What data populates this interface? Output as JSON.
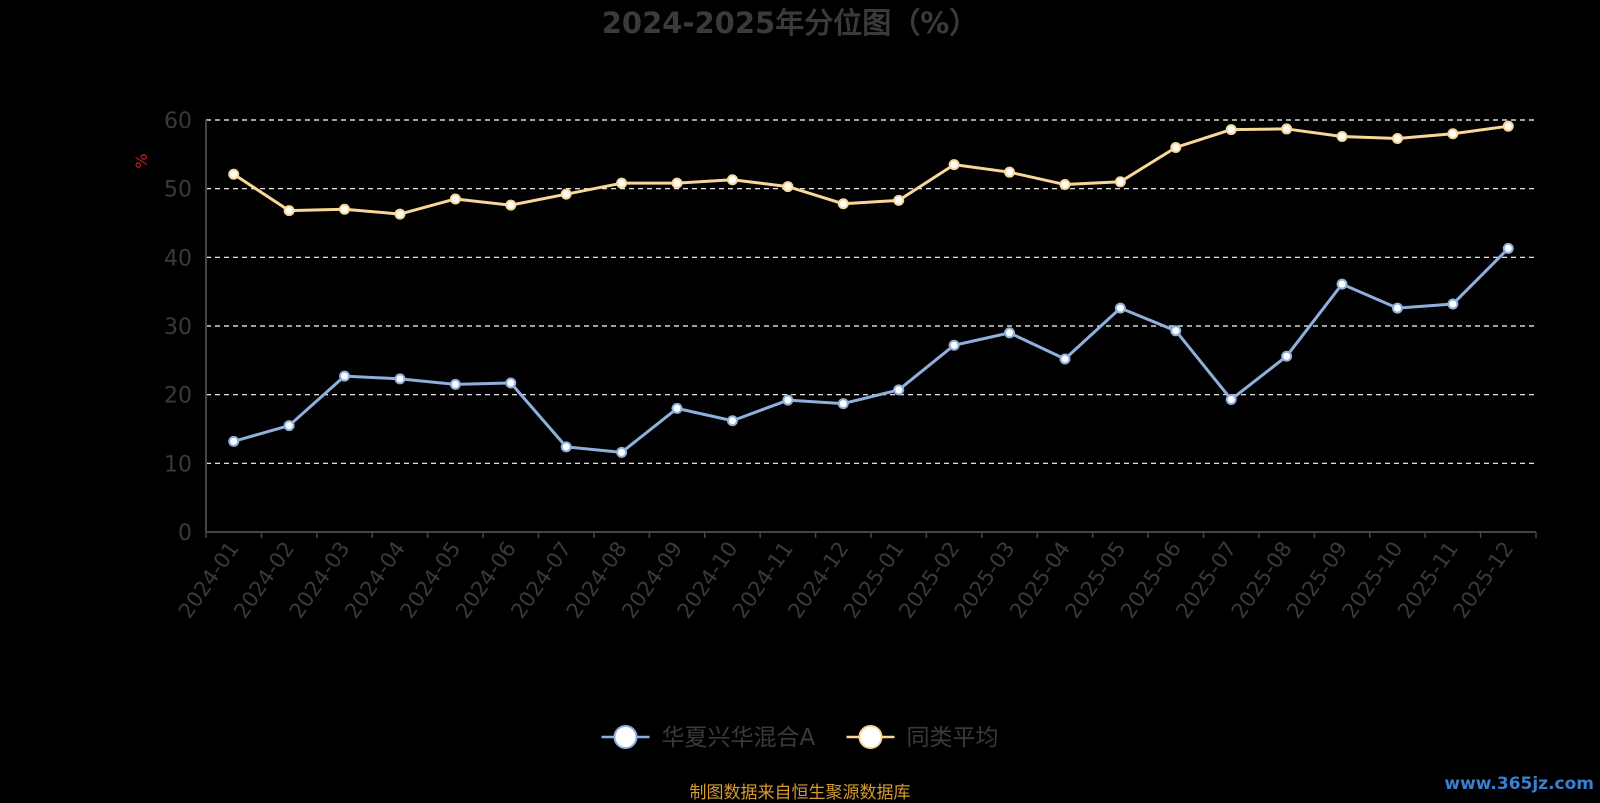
{
  "chart_data": {
    "type": "line",
    "title": "2024-2025年分位图（%）",
    "ylabel": "%",
    "xlabel": "",
    "ylim": [
      0,
      60
    ],
    "yticks": [
      0,
      10,
      20,
      30,
      40,
      50,
      60
    ],
    "grid": true,
    "grid_style": "dashed",
    "legend_position": "bottom-center",
    "categories": [
      "2024-01",
      "2024-02",
      "2024-03",
      "2024-04",
      "2024-05",
      "2024-06",
      "2024-07",
      "2024-08",
      "2024-09",
      "2024-10",
      "2024-11",
      "2024-12",
      "2025-01",
      "2025-02",
      "2025-03",
      "2025-04",
      "2025-05",
      "2025-06",
      "2025-07",
      "2025-08",
      "2025-09",
      "2025-10",
      "2025-11",
      "2025-12"
    ],
    "series": [
      {
        "name": "华夏兴华混合A",
        "color": "#8fb0dc",
        "values": [
          13.2,
          15.5,
          22.7,
          22.3,
          21.5,
          21.7,
          12.4,
          11.6,
          18.0,
          16.2,
          19.2,
          18.7,
          20.7,
          27.2,
          29.0,
          25.2,
          32.6,
          29.3,
          19.3,
          25.6,
          36.1,
          32.6,
          33.2,
          41.3
        ]
      },
      {
        "name": "同类平均",
        "color": "#f8d898",
        "values": [
          52.1,
          46.8,
          47.0,
          46.3,
          48.5,
          47.6,
          49.2,
          50.8,
          50.8,
          51.3,
          50.3,
          47.8,
          48.3,
          53.5,
          52.4,
          50.6,
          51.0,
          56.0,
          58.6,
          58.7,
          57.6,
          57.3,
          58.0,
          59.1
        ]
      }
    ]
  },
  "footer": {
    "source_text": "制图数据来自恒生聚源数据库",
    "watermark": "www.365jz.com"
  },
  "colors": {
    "background": "#000000",
    "title": "#3a3a3a",
    "axis_text": "#3a3a3a",
    "ylabel": "#c0202a",
    "grid": "#ffffff",
    "source": "#d79a32",
    "watermark": "#3b7fd0"
  }
}
